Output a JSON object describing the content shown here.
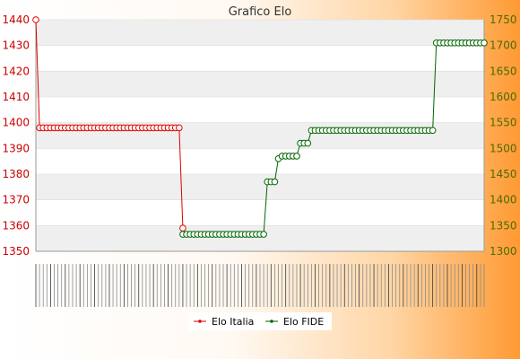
{
  "chart_data": {
    "type": "line",
    "title": "Grafico Elo",
    "colors": {
      "italia": "#e00000",
      "fide": "#006600",
      "band": "#efefef",
      "plot_bg": "#ffffff",
      "left_axis_text": "#cc0000",
      "right_axis_text": "#4c6b00"
    },
    "y_left": {
      "ticks": [
        1350,
        1360,
        1370,
        1380,
        1390,
        1400,
        1410,
        1420,
        1430,
        1440
      ],
      "range": [
        1350,
        1440
      ]
    },
    "y_right": {
      "ticks": [
        1300,
        1350,
        1400,
        1450,
        1500,
        1550,
        1600,
        1650,
        1700,
        1750
      ],
      "range": [
        1300,
        1750
      ]
    },
    "grid": true,
    "legend_position": "bottom-center",
    "x_count": 123,
    "series": [
      {
        "name": "Elo Italia",
        "axis": "left",
        "segments": [
          {
            "from": 0,
            "to": 0,
            "value": 1440
          },
          {
            "from": 1,
            "to": 39,
            "value": 1398
          },
          {
            "from": 40,
            "to": 40,
            "value": 1359
          }
        ]
      },
      {
        "name": "Elo FIDE",
        "axis": "right",
        "segments": [
          {
            "from": 40,
            "to": 62,
            "value": 1333
          },
          {
            "from": 63,
            "to": 65,
            "value": 1435
          },
          {
            "from": 66,
            "to": 66,
            "value": 1480
          },
          {
            "from": 67,
            "to": 71,
            "value": 1485
          },
          {
            "from": 72,
            "to": 74,
            "value": 1510
          },
          {
            "from": 75,
            "to": 108,
            "value": 1535
          },
          {
            "from": 109,
            "to": 122,
            "value": 1705
          }
        ]
      }
    ]
  }
}
